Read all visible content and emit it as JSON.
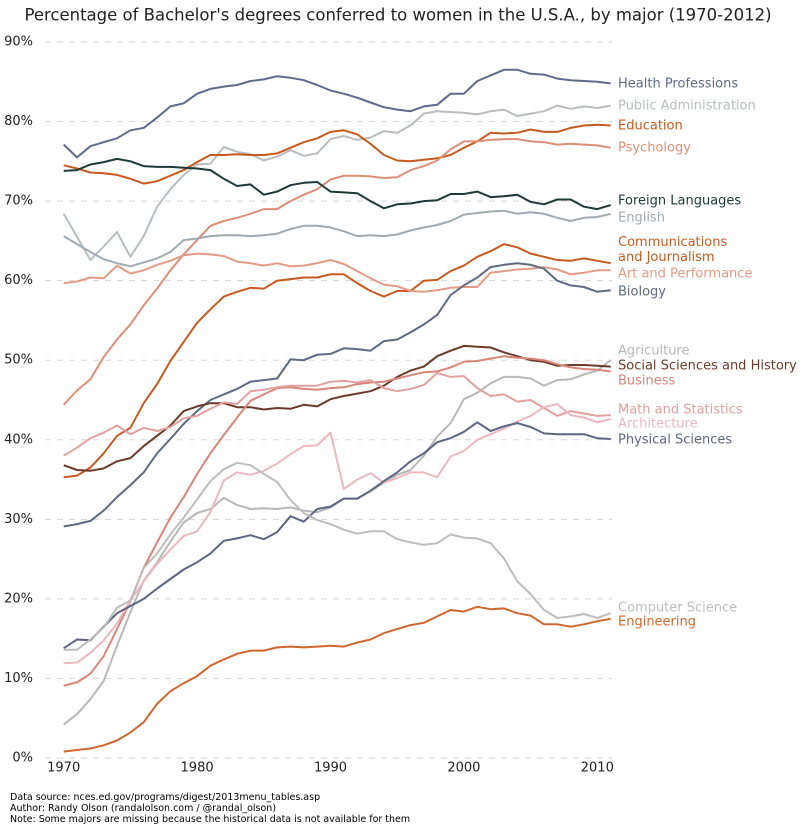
{
  "chart_data": {
    "type": "line",
    "title": "Percentage of Bachelor's degrees conferred to women in the U.S.A., by major (1970-2012)",
    "notes": [
      "Data source: nces.ed.gov/programs/digest/2013menu_tables.asp",
      "Author: Randy Olson (randalolson.com / @randal_olson)",
      "Note: Some majors are missing because the historical data is not available for them"
    ],
    "x": [
      1970,
      1971,
      1972,
      1973,
      1974,
      1975,
      1976,
      1977,
      1978,
      1979,
      1980,
      1981,
      1982,
      1983,
      1984,
      1985,
      1986,
      1987,
      1988,
      1989,
      1990,
      1991,
      1992,
      1993,
      1994,
      1995,
      1996,
      1997,
      1998,
      1999,
      2000,
      2001,
      2002,
      2003,
      2004,
      2005,
      2006,
      2007,
      2008,
      2009,
      2010,
      2011
    ],
    "xlim": [
      1968.6,
      2011.1
    ],
    "xticks": [
      1970,
      1980,
      1990,
      2000,
      2010
    ],
    "ylim": [
      0,
      90
    ],
    "yticks": [
      {
        "value": 0,
        "label": "0%"
      },
      {
        "value": 10,
        "label": "10%"
      },
      {
        "value": 20,
        "label": "20%"
      },
      {
        "value": 30,
        "label": "30%"
      },
      {
        "value": 40,
        "label": "40%"
      },
      {
        "value": 50,
        "label": "50%"
      },
      {
        "value": 60,
        "label": "60%"
      },
      {
        "value": 70,
        "label": "70%"
      },
      {
        "value": 80,
        "label": "80%"
      },
      {
        "value": 90,
        "label": "90%"
      }
    ],
    "grid": true,
    "series": [
      {
        "name": "Health Professions",
        "color": "#5f6b8a",
        "values": [
          77.1,
          75.5,
          76.9,
          77.4,
          77.9,
          78.9,
          79.2,
          80.5,
          81.9,
          82.3,
          83.5,
          84.1,
          84.4,
          84.6,
          85.1,
          85.3,
          85.7,
          85.5,
          85.2,
          84.6,
          83.9,
          83.5,
          83.0,
          82.4,
          81.8,
          81.5,
          81.3,
          81.9,
          82.1,
          83.5,
          83.5,
          85.1,
          85.8,
          86.5,
          86.5,
          86.0,
          85.9,
          85.4,
          85.2,
          85.1,
          85.0,
          84.8
        ]
      },
      {
        "name": "Public Administration",
        "color": "#b9bdbd",
        "values": [
          68.4,
          65.5,
          62.6,
          64.3,
          66.1,
          63.0,
          65.6,
          69.3,
          71.5,
          73.3,
          74.6,
          74.7,
          76.8,
          76.2,
          75.9,
          75.1,
          75.6,
          76.4,
          75.7,
          76.0,
          77.8,
          78.2,
          77.7,
          78.0,
          78.8,
          78.6,
          79.5,
          81.0,
          81.3,
          81.2,
          81.1,
          80.9,
          81.3,
          81.5,
          80.7,
          81.0,
          81.3,
          82.0,
          81.6,
          81.9,
          81.7,
          82.0
        ]
      },
      {
        "name": "Education",
        "color": "#c85a1f",
        "values": [
          74.5,
          74.1,
          73.6,
          73.5,
          73.3,
          72.8,
          72.2,
          72.5,
          73.2,
          73.9,
          74.9,
          75.8,
          75.8,
          75.9,
          75.8,
          75.8,
          76.0,
          76.7,
          77.4,
          77.9,
          78.7,
          78.9,
          78.4,
          77.2,
          75.8,
          75.1,
          75.0,
          75.2,
          75.4,
          75.8,
          76.7,
          77.5,
          78.6,
          78.5,
          78.6,
          79.0,
          78.7,
          78.7,
          79.2,
          79.5,
          79.6,
          79.5
        ]
      },
      {
        "name": "Psychology",
        "color": "#de8e77",
        "values": [
          44.4,
          46.2,
          47.6,
          50.4,
          52.6,
          54.5,
          56.9,
          59.0,
          61.3,
          63.3,
          65.1,
          66.9,
          67.5,
          67.9,
          68.4,
          69.0,
          69.0,
          70.0,
          70.8,
          71.5,
          72.7,
          73.2,
          73.2,
          73.1,
          72.9,
          73.0,
          73.9,
          74.4,
          75.1,
          76.5,
          77.5,
          77.5,
          77.7,
          77.8,
          77.8,
          77.5,
          77.4,
          77.1,
          77.2,
          77.1,
          77.0,
          76.7
        ]
      },
      {
        "name": "Foreign Languages",
        "color": "#1f3838",
        "values": [
          73.8,
          73.9,
          74.6,
          74.9,
          75.3,
          75.0,
          74.4,
          74.3,
          74.3,
          74.2,
          74.1,
          73.9,
          72.8,
          71.9,
          72.1,
          70.8,
          71.2,
          72.0,
          72.3,
          72.4,
          71.2,
          71.1,
          71.0,
          70.0,
          69.1,
          69.6,
          69.7,
          70.0,
          70.1,
          70.9,
          70.9,
          71.2,
          70.5,
          70.6,
          70.8,
          69.9,
          69.6,
          70.2,
          70.2,
          69.3,
          69.0,
          69.5
        ]
      },
      {
        "name": "English",
        "color": "#a0aab0",
        "values": [
          65.6,
          64.6,
          63.6,
          62.7,
          62.2,
          61.8,
          62.3,
          62.8,
          63.6,
          65.1,
          65.3,
          65.6,
          65.7,
          65.7,
          65.6,
          65.7,
          65.9,
          66.5,
          66.9,
          66.9,
          66.7,
          66.2,
          65.6,
          65.7,
          65.6,
          65.8,
          66.3,
          66.7,
          67.0,
          67.5,
          68.3,
          68.5,
          68.7,
          68.8,
          68.4,
          68.6,
          68.4,
          67.9,
          67.5,
          67.9,
          68.0,
          68.4
        ]
      },
      {
        "name": "Communications\nand Journalism",
        "color": "#c85a1f",
        "values": [
          35.3,
          35.5,
          36.5,
          38.3,
          40.5,
          41.5,
          44.6,
          47.0,
          49.9,
          52.3,
          54.7,
          56.4,
          58.0,
          58.6,
          59.1,
          59.0,
          60.0,
          60.2,
          60.4,
          60.4,
          60.8,
          60.8,
          59.7,
          58.7,
          58.0,
          58.7,
          58.7,
          60.0,
          60.1,
          61.2,
          61.9,
          63.0,
          63.7,
          64.6,
          64.2,
          63.4,
          63.0,
          62.6,
          62.5,
          62.8,
          62.5,
          62.2
        ]
      },
      {
        "name": "Art and Performance",
        "color": "#e59a85",
        "values": [
          59.7,
          59.9,
          60.4,
          60.3,
          61.9,
          60.9,
          61.3,
          62.0,
          62.5,
          63.2,
          63.4,
          63.3,
          63.1,
          62.4,
          62.2,
          61.9,
          62.2,
          61.8,
          61.9,
          62.2,
          62.6,
          62.1,
          61.2,
          60.3,
          59.5,
          59.3,
          58.7,
          58.6,
          58.8,
          59.1,
          59.2,
          59.2,
          61.0,
          61.2,
          61.4,
          61.5,
          61.7,
          61.4,
          60.8,
          61.0,
          61.3,
          61.3
        ]
      },
      {
        "name": "Biology",
        "color": "#5e6b80",
        "values": [
          29.1,
          29.4,
          29.8,
          31.1,
          32.8,
          34.3,
          35.9,
          38.3,
          40.1,
          42.0,
          43.6,
          45.0,
          45.7,
          46.4,
          47.3,
          47.5,
          47.7,
          50.1,
          50.0,
          50.7,
          50.8,
          51.5,
          51.4,
          51.2,
          52.4,
          52.6,
          53.5,
          54.5,
          55.7,
          58.2,
          59.4,
          60.4,
          61.7,
          62.0,
          62.2,
          62.0,
          61.5,
          60.0,
          59.4,
          59.2,
          58.6,
          58.8
        ]
      },
      {
        "name": "Agriculture",
        "color": "#b8b8b8",
        "values": [
          4.2,
          5.5,
          7.4,
          9.7,
          14.1,
          18.3,
          22.3,
          24.6,
          27.2,
          29.6,
          30.8,
          31.3,
          32.7,
          31.8,
          31.3,
          31.4,
          31.3,
          31.5,
          31.1,
          30.9,
          31.5,
          32.6,
          32.6,
          33.5,
          34.6,
          35.6,
          36.2,
          38.0,
          40.4,
          42.1,
          45.1,
          45.9,
          47.1,
          47.9,
          47.9,
          47.7,
          46.8,
          47.5,
          47.6,
          48.2,
          48.7,
          50.0
        ]
      },
      {
        "name": "Social Sciences and History",
        "color": "#6b3a2a",
        "values": [
          36.8,
          36.2,
          36.1,
          36.4,
          37.3,
          37.7,
          39.2,
          40.5,
          41.8,
          43.6,
          44.2,
          44.6,
          44.6,
          44.1,
          44.1,
          43.8,
          44.0,
          43.9,
          44.4,
          44.2,
          45.1,
          45.5,
          45.8,
          46.1,
          46.8,
          47.9,
          48.7,
          49.2,
          50.5,
          51.2,
          51.8,
          51.7,
          51.6,
          51.0,
          50.5,
          50.0,
          49.8,
          49.3,
          49.4,
          49.4,
          49.3,
          49.2
        ]
      },
      {
        "name": "Business",
        "color": "#d9857a",
        "values": [
          9.1,
          9.5,
          10.6,
          12.8,
          16.2,
          19.7,
          23.9,
          27.1,
          30.2,
          32.8,
          35.7,
          38.3,
          40.6,
          42.8,
          44.9,
          45.7,
          46.5,
          46.6,
          46.4,
          46.3,
          46.5,
          46.6,
          47.0,
          47.2,
          47.3,
          47.7,
          48.1,
          48.5,
          48.6,
          49.1,
          49.8,
          49.9,
          50.2,
          50.5,
          50.3,
          50.2,
          50.0,
          49.5,
          49.1,
          48.9,
          48.8,
          48.6
        ]
      },
      {
        "name": "Math and Statistics",
        "color": "#e3a0a0",
        "values": [
          38.0,
          39.0,
          40.2,
          40.9,
          41.8,
          40.7,
          41.5,
          41.1,
          41.6,
          42.7,
          43.0,
          43.9,
          44.7,
          44.5,
          46.1,
          46.3,
          46.6,
          46.8,
          46.8,
          46.8,
          47.3,
          47.4,
          47.2,
          47.5,
          46.5,
          46.1,
          46.4,
          46.9,
          48.4,
          47.9,
          48.0,
          46.5,
          45.5,
          45.7,
          44.8,
          45.0,
          44.0,
          43.0,
          43.6,
          43.3,
          43.0,
          43.1
        ]
      },
      {
        "name": "Architecture",
        "color": "#ebb8c0",
        "values": [
          11.9,
          12.0,
          13.2,
          14.8,
          16.9,
          19.8,
          22.2,
          24.4,
          26.2,
          27.9,
          28.5,
          30.9,
          34.9,
          35.9,
          35.6,
          36.1,
          37.0,
          38.2,
          39.2,
          39.3,
          40.9,
          33.8,
          35.0,
          35.8,
          34.6,
          35.2,
          35.9,
          35.9,
          35.3,
          37.9,
          38.6,
          40.0,
          40.7,
          41.4,
          42.3,
          43.0,
          44.1,
          44.5,
          43.1,
          42.8,
          42.2,
          42.6
        ]
      },
      {
        "name": "Physical Sciences",
        "color": "#5e6680",
        "values": [
          13.8,
          14.9,
          14.8,
          16.5,
          18.2,
          19.1,
          20.0,
          21.3,
          22.5,
          23.7,
          24.6,
          25.7,
          27.3,
          27.6,
          28.0,
          27.5,
          28.4,
          30.4,
          29.7,
          31.3,
          31.6,
          32.6,
          32.6,
          33.6,
          34.8,
          35.9,
          37.3,
          38.3,
          39.7,
          40.2,
          41.0,
          42.2,
          41.1,
          41.7,
          42.1,
          41.6,
          40.8,
          40.7,
          40.7,
          40.7,
          40.2,
          40.1
        ]
      },
      {
        "name": "Computer Science",
        "color": "#bdbdbd",
        "values": [
          13.6,
          13.6,
          14.9,
          16.4,
          18.9,
          19.8,
          23.9,
          25.7,
          28.1,
          30.2,
          32.5,
          34.8,
          36.3,
          37.1,
          36.8,
          35.7,
          34.7,
          32.4,
          30.8,
          29.9,
          29.4,
          28.7,
          28.2,
          28.5,
          28.5,
          27.5,
          27.1,
          26.8,
          27.0,
          28.1,
          27.7,
          27.6,
          27.0,
          25.1,
          22.2,
          20.6,
          18.6,
          17.6,
          17.8,
          18.1,
          17.6,
          18.2
        ]
      },
      {
        "name": "Engineering",
        "color": "#d1672e",
        "values": [
          0.8,
          1.0,
          1.2,
          1.6,
          2.2,
          3.2,
          4.5,
          6.8,
          8.4,
          9.4,
          10.3,
          11.6,
          12.4,
          13.1,
          13.5,
          13.5,
          13.9,
          14.0,
          13.9,
          14.0,
          14.1,
          14.0,
          14.5,
          14.9,
          15.7,
          16.2,
          16.7,
          17.0,
          17.8,
          18.6,
          18.4,
          19.0,
          18.7,
          18.8,
          18.2,
          17.9,
          16.8,
          16.8,
          16.5,
          16.8,
          17.2,
          17.5
        ]
      }
    ]
  }
}
